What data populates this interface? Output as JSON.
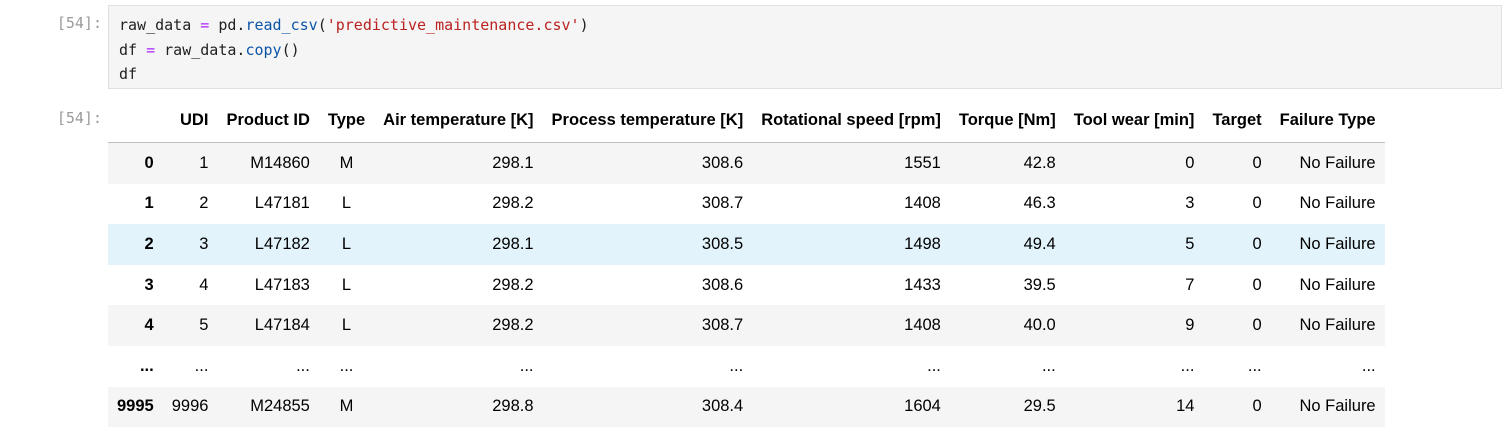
{
  "cell": {
    "input_prompt": "[54]:",
    "output_prompt": "[54]:",
    "code": {
      "line1": {
        "var": "raw_data",
        "op": "=",
        "obj": "pd.",
        "fn": "read_csv",
        "open": "(",
        "arg": "'predictive_maintenance.csv'",
        "close": ")"
      },
      "line2": {
        "var": "df",
        "op": "=",
        "obj": "raw_data.",
        "fn": "copy",
        "parens": "()"
      },
      "line3": {
        "var": "df"
      }
    }
  },
  "table": {
    "columns": [
      "",
      "UDI",
      "Product ID",
      "Type",
      "Air temperature [K]",
      "Process temperature [K]",
      "Rotational speed [rpm]",
      "Torque [Nm]",
      "Tool wear [min]",
      "Target",
      "Failure Type"
    ],
    "rows": [
      [
        "0",
        "1",
        "M14860",
        "M",
        "298.1",
        "308.6",
        "1551",
        "42.8",
        "0",
        "0",
        "No Failure"
      ],
      [
        "1",
        "2",
        "L47181",
        "L",
        "298.2",
        "308.7",
        "1408",
        "46.3",
        "3",
        "0",
        "No Failure"
      ],
      [
        "2",
        "3",
        "L47182",
        "L",
        "298.1",
        "308.5",
        "1498",
        "49.4",
        "5",
        "0",
        "No Failure"
      ],
      [
        "3",
        "4",
        "L47183",
        "L",
        "298.2",
        "308.6",
        "1433",
        "39.5",
        "7",
        "0",
        "No Failure"
      ],
      [
        "4",
        "5",
        "L47184",
        "L",
        "298.2",
        "308.7",
        "1408",
        "40.0",
        "9",
        "0",
        "No Failure"
      ],
      [
        "...",
        "...",
        "...",
        "...",
        "...",
        "...",
        "...",
        "...",
        "...",
        "...",
        "..."
      ],
      [
        "9995",
        "9996",
        "M24855",
        "M",
        "298.8",
        "308.4",
        "1604",
        "29.5",
        "14",
        "0",
        "No Failure"
      ]
    ],
    "hovered_row_index": 2
  }
}
